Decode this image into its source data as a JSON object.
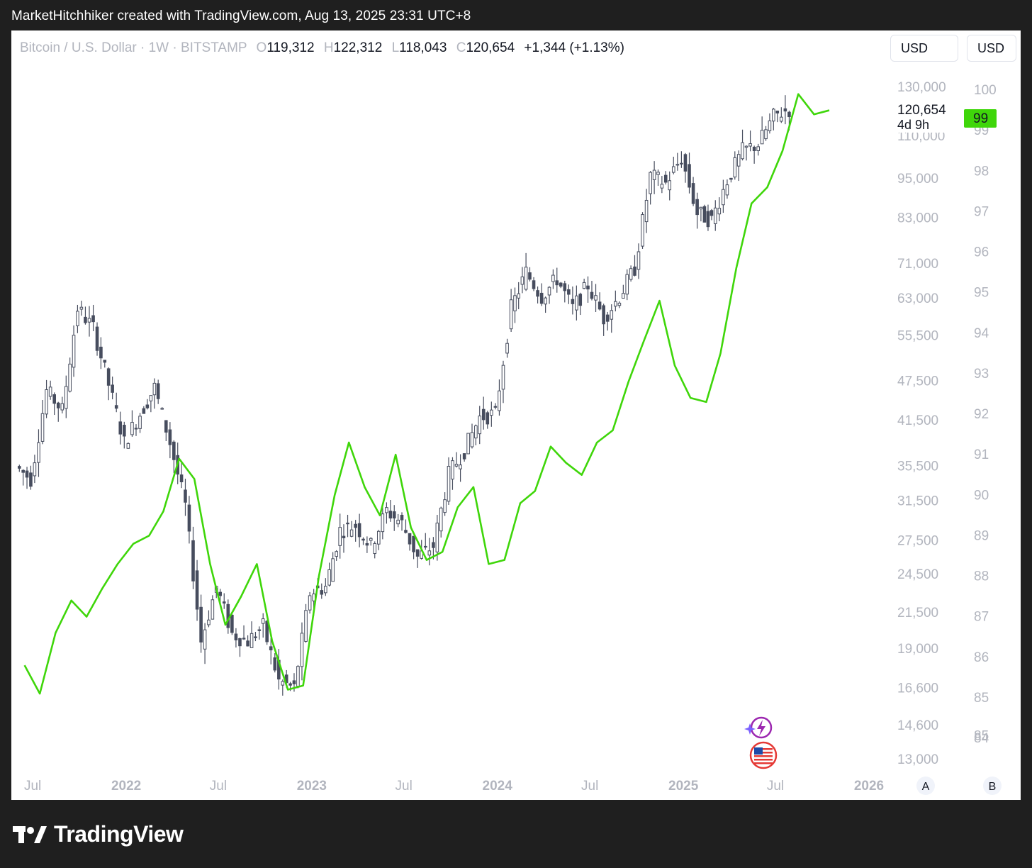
{
  "header": {
    "caption": "MarketHitchhiker created with TradingView.com, Aug 13, 2025 23:31 UTC+8"
  },
  "legend": {
    "symbol": "Bitcoin / U.S. Dollar · 1W · BITSTAMP",
    "open_label": "O",
    "open": "119,312",
    "high_label": "H",
    "high": "122,312",
    "low_label": "L",
    "low": "118,043",
    "close_label": "C",
    "close": "120,654",
    "change": "+1,344 (+1.13%)"
  },
  "currency_buttons": {
    "left": "USD",
    "right": "USD"
  },
  "price_badge": {
    "value": "120,654",
    "countdown": "4d 9h"
  },
  "right_badge": {
    "value": "99",
    "color": "#3fd60a"
  },
  "bottom_badges": {
    "a": "A",
    "b": "B"
  },
  "footer": {
    "brand": "TradingView"
  },
  "colors": {
    "candle": "#474d5e",
    "line": "#3fd60a",
    "axis_text": "#b2b5be",
    "time_text": "#b2b5be"
  },
  "chart_data": {
    "type": "line",
    "series": [
      {
        "kind": "candlestick",
        "note_values": "weekly close approx (USD), Bitstamp",
        "x": [
          "2021-06",
          "2021-07",
          "2021-08",
          "2021-09",
          "2021-10",
          "2021-11",
          "2021-12",
          "2022-01",
          "2022-02",
          "2022-03",
          "2022-04",
          "2022-05",
          "2022-06",
          "2022-07",
          "2022-08",
          "2022-09",
          "2022-10",
          "2022-11",
          "2022-12",
          "2023-01",
          "2023-02",
          "2023-03",
          "2023-04",
          "2023-05",
          "2023-06",
          "2023-07",
          "2023-08",
          "2023-09",
          "2023-10",
          "2023-11",
          "2023-12",
          "2024-01",
          "2024-02",
          "2024-03",
          "2024-04",
          "2024-05",
          "2024-06",
          "2024-07",
          "2024-08",
          "2024-09",
          "2024-10",
          "2024-11",
          "2024-12",
          "2025-01",
          "2025-02",
          "2025-03",
          "2025-04",
          "2025-05",
          "2025-06",
          "2025-07",
          "2025-08"
        ],
        "values": [
          35500,
          34000,
          46000,
          43000,
          61000,
          57000,
          47000,
          38500,
          42500,
          46500,
          38500,
          31000,
          19500,
          23500,
          20000,
          19500,
          20500,
          17000,
          16600,
          23000,
          23500,
          28500,
          29000,
          27000,
          30500,
          29200,
          26000,
          27000,
          34500,
          37500,
          42000,
          42500,
          61000,
          69000,
          63500,
          67500,
          61000,
          66000,
          59000,
          63500,
          70000,
          96000,
          93500,
          102000,
          84500,
          82500,
          94500,
          104500,
          107000,
          117500,
          120654
        ]
      },
      {
        "kind": "line",
        "axis": "right",
        "values_note": "right-axis index value, approx",
        "x": [
          "2021-06",
          "2021-07",
          "2021-08",
          "2021-09",
          "2021-10",
          "2021-11",
          "2021-12",
          "2022-01",
          "2022-02",
          "2022-03",
          "2022-04",
          "2022-05",
          "2022-06",
          "2022-07",
          "2022-08",
          "2022-09",
          "2022-10",
          "2022-11",
          "2022-12",
          "2023-01",
          "2023-02",
          "2023-03",
          "2023-04",
          "2023-05",
          "2023-06",
          "2023-07",
          "2023-08",
          "2023-09",
          "2023-10",
          "2023-11",
          "2023-12",
          "2024-01",
          "2024-02",
          "2024-03",
          "2024-04",
          "2024-05",
          "2024-06",
          "2024-07",
          "2024-08",
          "2024-09",
          "2024-10",
          "2024-11",
          "2024-12",
          "2025-01",
          "2025-02",
          "2025-03",
          "2025-04",
          "2025-05",
          "2025-06",
          "2025-07",
          "2025-08",
          "2025-09",
          "2025-10"
        ],
        "values": [
          85.8,
          85.1,
          86.6,
          87.4,
          87.0,
          87.7,
          88.3,
          88.8,
          89.0,
          89.6,
          90.9,
          90.4,
          88.3,
          86.8,
          87.5,
          88.3,
          86.4,
          85.2,
          85.3,
          88.0,
          90.0,
          91.3,
          90.2,
          89.5,
          91.0,
          89.2,
          88.4,
          88.6,
          89.7,
          90.2,
          88.3,
          88.4,
          89.8,
          90.1,
          91.2,
          90.8,
          90.5,
          91.3,
          91.6,
          92.8,
          93.8,
          94.8,
          93.2,
          92.4,
          92.3,
          93.5,
          95.6,
          97.2,
          97.6,
          98.5,
          99.9,
          99.4,
          99.5
        ]
      }
    ],
    "left_axis_ticks": [
      "130,000",
      "110,000",
      "95,000",
      "83,000",
      "71,000",
      "63,000",
      "55,500",
      "47,500",
      "41,500",
      "35,500",
      "31,500",
      "27,500",
      "24,500",
      "21,500",
      "19,000",
      "16,600",
      "14,600",
      "13,000"
    ],
    "right_axis_ticks": [
      "100",
      "99",
      "98",
      "97",
      "96",
      "95",
      "94",
      "93",
      "92",
      "91",
      "90",
      "89",
      "88",
      "87",
      "86",
      "85",
      "85",
      "84"
    ],
    "x_ticks": [
      "Jul",
      "2022",
      "Jul",
      "2023",
      "Jul",
      "2024",
      "Jul",
      "2025",
      "Jul",
      "2026"
    ],
    "left_scale": "log",
    "grid": false
  }
}
